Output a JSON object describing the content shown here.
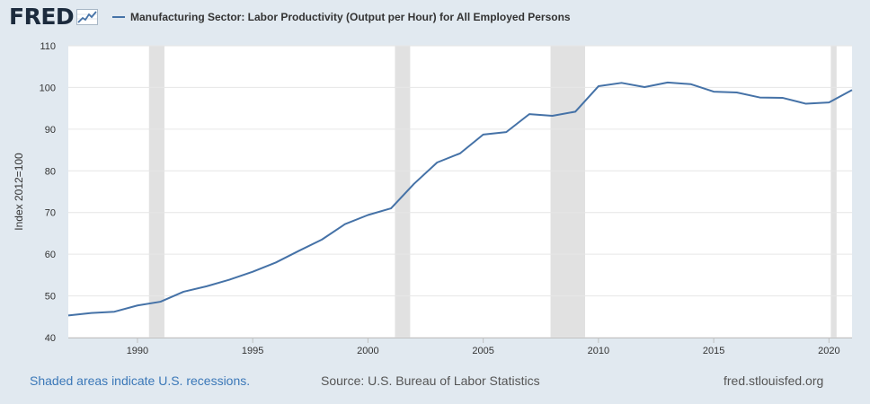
{
  "header": {
    "logo_text": "FRED",
    "logo_icon": "fred-graph-icon",
    "legend_label": "Manufacturing Sector: Labor Productivity (Output per Hour) for All Employed Persons"
  },
  "footer": {
    "recessions_note": "Shaded areas indicate U.S. recessions.",
    "source": "Source: U.S. Bureau of Labor Statistics",
    "site": "fred.stlouisfed.org"
  },
  "colors": {
    "series": "#4572a7",
    "recession": "#e1e1e1",
    "page_background": "#e1e9f0",
    "plot_background": "#ffffff",
    "logo": "#1c2b3d",
    "link": "#3b78b8"
  },
  "chart_data": {
    "type": "line",
    "title": "",
    "xlabel": "",
    "ylabel": "Index 2012=100",
    "xlim": [
      1987,
      2021
    ],
    "ylim": [
      40,
      110
    ],
    "grid": true,
    "legend_position": "top",
    "x_ticks": [
      1990,
      1995,
      2000,
      2005,
      2010,
      2015,
      2020
    ],
    "y_ticks": [
      40,
      50,
      60,
      70,
      80,
      90,
      100,
      110
    ],
    "recessions": [
      {
        "start": 1990.5,
        "end": 1991.17
      },
      {
        "start": 2001.17,
        "end": 2001.83
      },
      {
        "start": 2007.92,
        "end": 2009.42
      },
      {
        "start": 2020.08,
        "end": 2020.33
      }
    ],
    "series": [
      {
        "name": "Manufacturing Sector: Labor Productivity (Output per Hour) for All Employed Persons",
        "x": [
          1987,
          1988,
          1989,
          1990,
          1991,
          1992,
          1993,
          1994,
          1995,
          1996,
          1997,
          1998,
          1999,
          2000,
          2001,
          2002,
          2003,
          2004,
          2005,
          2006,
          2007,
          2008,
          2009,
          2010,
          2011,
          2012,
          2013,
          2014,
          2015,
          2016,
          2017,
          2018,
          2019,
          2020,
          2021
        ],
        "values": [
          45.3,
          45.9,
          46.2,
          47.7,
          48.6,
          51.0,
          52.3,
          53.9,
          55.8,
          58.0,
          60.8,
          63.5,
          67.2,
          69.4,
          71.0,
          76.9,
          82.0,
          84.2,
          88.7,
          89.3,
          93.6,
          93.2,
          94.2,
          100.3,
          101.1,
          100.1,
          101.2,
          100.8,
          99.0,
          98.8,
          97.6,
          97.5,
          96.1,
          96.4,
          99.4
        ]
      }
    ]
  }
}
